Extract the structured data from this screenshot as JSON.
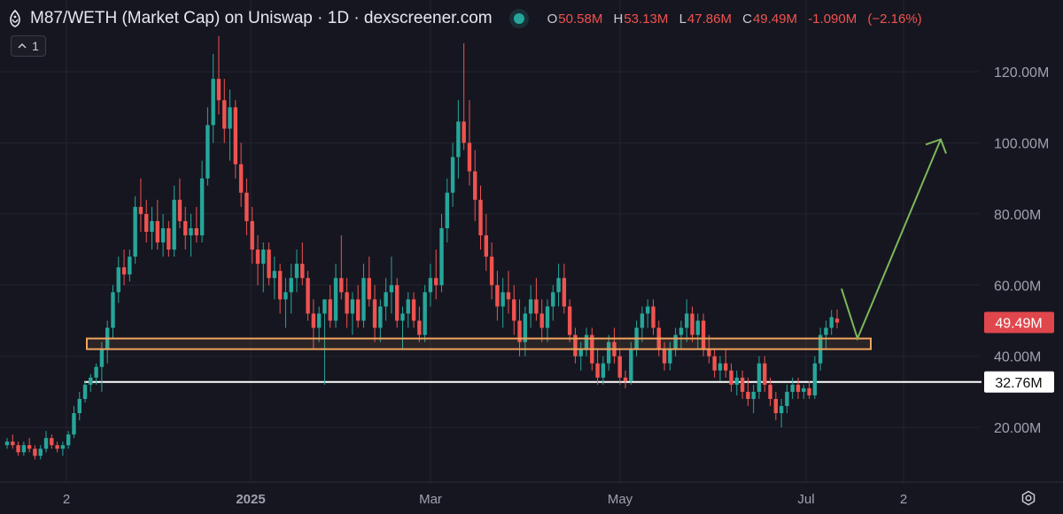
{
  "header": {
    "title": "M87/WETH (Market Cap) on Uniswap · 1D · dexscreener.com",
    "ohlc": [
      {
        "key": "O",
        "value": "50.58M"
      },
      {
        "key": "H",
        "value": "53.13M"
      },
      {
        "key": "L",
        "value": "47.86M"
      },
      {
        "key": "C",
        "value": "49.49M"
      },
      {
        "key": "",
        "value": "-1.090M"
      },
      {
        "key": "",
        "value": "(−2.16%)"
      }
    ]
  },
  "legend_toggle": {
    "label": "1"
  },
  "colors": {
    "up": "#26a69a",
    "down": "#ef5350",
    "background": "#161620",
    "support": "#f0a35e",
    "arrow": "#7cb85a"
  },
  "icons": [
    "dexscreener-logo-icon",
    "chevron-up-icon",
    "settings-gear-icon"
  ],
  "chart_data": {
    "type": "candlestick",
    "title": "",
    "xlabel": "",
    "ylabel": "",
    "y_ticks": [
      "20.00M",
      "40.00M",
      "60.00M",
      "80.00M",
      "100.00M",
      "120.00M"
    ],
    "x_ticks": [
      "2",
      "2025",
      "Mar",
      "May",
      "Jul",
      "2"
    ],
    "ylim": [
      5,
      130
    ],
    "scale": "linear",
    "grid": true,
    "last_price_label": "49.49M",
    "price_line_label": "32.76M",
    "series": [
      {
        "values": [
          [
            15,
            17,
            14,
            16
          ],
          [
            16,
            18,
            14,
            15
          ],
          [
            15,
            16,
            12,
            13
          ],
          [
            13,
            16,
            12,
            15
          ],
          [
            15,
            17,
            13,
            14
          ],
          [
            14,
            15,
            11,
            12
          ],
          [
            12,
            15,
            11,
            14
          ],
          [
            14,
            19,
            13,
            17
          ],
          [
            17,
            18,
            14,
            15
          ],
          [
            15,
            16,
            13,
            14
          ],
          [
            14,
            16,
            12,
            15
          ],
          [
            15,
            19,
            14,
            18
          ],
          [
            18,
            26,
            17,
            24
          ],
          [
            24,
            30,
            22,
            28
          ],
          [
            28,
            33,
            27,
            32
          ],
          [
            32,
            35,
            30,
            34
          ],
          [
            34,
            38,
            32,
            37
          ],
          [
            37,
            44,
            30,
            42
          ],
          [
            42,
            50,
            38,
            48
          ],
          [
            48,
            60,
            45,
            58
          ],
          [
            58,
            68,
            55,
            65
          ],
          [
            65,
            70,
            60,
            63
          ],
          [
            63,
            70,
            61,
            68
          ],
          [
            68,
            85,
            66,
            82
          ],
          [
            82,
            90,
            75,
            80
          ],
          [
            80,
            84,
            72,
            75
          ],
          [
            75,
            82,
            70,
            78
          ],
          [
            78,
            84,
            70,
            72
          ],
          [
            72,
            80,
            68,
            76
          ],
          [
            76,
            78,
            68,
            70
          ],
          [
            70,
            88,
            68,
            84
          ],
          [
            84,
            90,
            76,
            78
          ],
          [
            78,
            82,
            70,
            74
          ],
          [
            74,
            80,
            68,
            76
          ],
          [
            76,
            82,
            72,
            74
          ],
          [
            74,
            95,
            72,
            90
          ],
          [
            90,
            110,
            88,
            105
          ],
          [
            105,
            125,
            100,
            118
          ],
          [
            118,
            130,
            108,
            112
          ],
          [
            112,
            118,
            100,
            104
          ],
          [
            104,
            115,
            95,
            110
          ],
          [
            110,
            112,
            90,
            94
          ],
          [
            94,
            100,
            82,
            86
          ],
          [
            86,
            90,
            74,
            78
          ],
          [
            78,
            82,
            66,
            70
          ],
          [
            70,
            74,
            60,
            66
          ],
          [
            66,
            72,
            58,
            70
          ],
          [
            70,
            72,
            60,
            62
          ],
          [
            62,
            68,
            56,
            64
          ],
          [
            64,
            66,
            52,
            56
          ],
          [
            56,
            62,
            48,
            58
          ],
          [
            58,
            66,
            52,
            62
          ],
          [
            62,
            70,
            58,
            66
          ],
          [
            66,
            72,
            60,
            62
          ],
          [
            62,
            64,
            50,
            52
          ],
          [
            52,
            56,
            42,
            48
          ],
          [
            48,
            54,
            44,
            52
          ],
          [
            52,
            56,
            32,
            56
          ],
          [
            56,
            60,
            48,
            50
          ],
          [
            50,
            66,
            48,
            62
          ],
          [
            62,
            74,
            56,
            58
          ],
          [
            58,
            62,
            48,
            52
          ],
          [
            52,
            58,
            46,
            56
          ],
          [
            56,
            60,
            48,
            50
          ],
          [
            50,
            66,
            48,
            62
          ],
          [
            62,
            68,
            54,
            56
          ],
          [
            56,
            60,
            44,
            48
          ],
          [
            48,
            56,
            44,
            54
          ],
          [
            54,
            62,
            50,
            58
          ],
          [
            58,
            68,
            52,
            60
          ],
          [
            60,
            62,
            48,
            50
          ],
          [
            50,
            54,
            42,
            52
          ],
          [
            52,
            58,
            48,
            56
          ],
          [
            56,
            58,
            48,
            50
          ],
          [
            50,
            54,
            44,
            46
          ],
          [
            46,
            60,
            44,
            58
          ],
          [
            58,
            66,
            54,
            62
          ],
          [
            62,
            70,
            56,
            60
          ],
          [
            60,
            80,
            58,
            76
          ],
          [
            76,
            90,
            72,
            86
          ],
          [
            86,
            100,
            82,
            96
          ],
          [
            96,
            112,
            90,
            106
          ],
          [
            106,
            128,
            98,
            100
          ],
          [
            100,
            112,
            88,
            92
          ],
          [
            92,
            98,
            78,
            84
          ],
          [
            84,
            88,
            70,
            74
          ],
          [
            74,
            80,
            64,
            68
          ],
          [
            68,
            72,
            56,
            60
          ],
          [
            60,
            64,
            50,
            54
          ],
          [
            54,
            62,
            48,
            58
          ],
          [
            58,
            64,
            52,
            56
          ],
          [
            56,
            60,
            46,
            50
          ],
          [
            50,
            56,
            40,
            44
          ],
          [
            44,
            54,
            40,
            52
          ],
          [
            52,
            60,
            48,
            56
          ],
          [
            56,
            62,
            50,
            52
          ],
          [
            52,
            56,
            44,
            48
          ],
          [
            48,
            56,
            44,
            54
          ],
          [
            54,
            60,
            50,
            58
          ],
          [
            58,
            66,
            54,
            62
          ],
          [
            62,
            66,
            52,
            54
          ],
          [
            54,
            56,
            44,
            46
          ],
          [
            46,
            48,
            38,
            40
          ],
          [
            40,
            44,
            36,
            42
          ],
          [
            42,
            48,
            40,
            46
          ],
          [
            46,
            48,
            36,
            38
          ],
          [
            38,
            42,
            32,
            34
          ],
          [
            34,
            40,
            32,
            38
          ],
          [
            38,
            46,
            36,
            44
          ],
          [
            44,
            48,
            38,
            40
          ],
          [
            40,
            42,
            32,
            34
          ],
          [
            34,
            36,
            31,
            33
          ],
          [
            33,
            44,
            32,
            42
          ],
          [
            42,
            50,
            40,
            48
          ],
          [
            48,
            54,
            44,
            52
          ],
          [
            52,
            56,
            48,
            54
          ],
          [
            54,
            56,
            46,
            48
          ],
          [
            48,
            50,
            40,
            42
          ],
          [
            42,
            44,
            36,
            38
          ],
          [
            38,
            44,
            36,
            42
          ],
          [
            42,
            48,
            40,
            46
          ],
          [
            46,
            50,
            42,
            48
          ],
          [
            48,
            56,
            44,
            52
          ],
          [
            52,
            54,
            44,
            46
          ],
          [
            46,
            52,
            42,
            50
          ],
          [
            50,
            52,
            40,
            42
          ],
          [
            42,
            46,
            38,
            40
          ],
          [
            40,
            42,
            34,
            36
          ],
          [
            36,
            40,
            33,
            38
          ],
          [
            38,
            42,
            34,
            36
          ],
          [
            36,
            38,
            30,
            32
          ],
          [
            32,
            36,
            29,
            34
          ],
          [
            34,
            36,
            28,
            30
          ],
          [
            30,
            34,
            26,
            28
          ],
          [
            28,
            32,
            24,
            30
          ],
          [
            30,
            40,
            28,
            38
          ],
          [
            38,
            40,
            30,
            32
          ],
          [
            32,
            34,
            26,
            28
          ],
          [
            28,
            30,
            22,
            24
          ],
          [
            24,
            28,
            20,
            26
          ],
          [
            26,
            32,
            24,
            30
          ],
          [
            30,
            34,
            28,
            32
          ],
          [
            32,
            34,
            28,
            30
          ],
          [
            30,
            32,
            28,
            31
          ],
          [
            31,
            33,
            28,
            29
          ],
          [
            29,
            40,
            28,
            38
          ],
          [
            38,
            48,
            36,
            46
          ],
          [
            46,
            50,
            42,
            48
          ],
          [
            48,
            53,
            46,
            51
          ],
          [
            50.58,
            53.13,
            47.86,
            49.49
          ]
        ]
      }
    ],
    "annotations": {
      "support_zone": [
        42,
        45
      ],
      "support_line": 32.76,
      "projection": [
        [
          49,
          59
        ],
        [
          45,
          101
        ]
      ]
    }
  }
}
